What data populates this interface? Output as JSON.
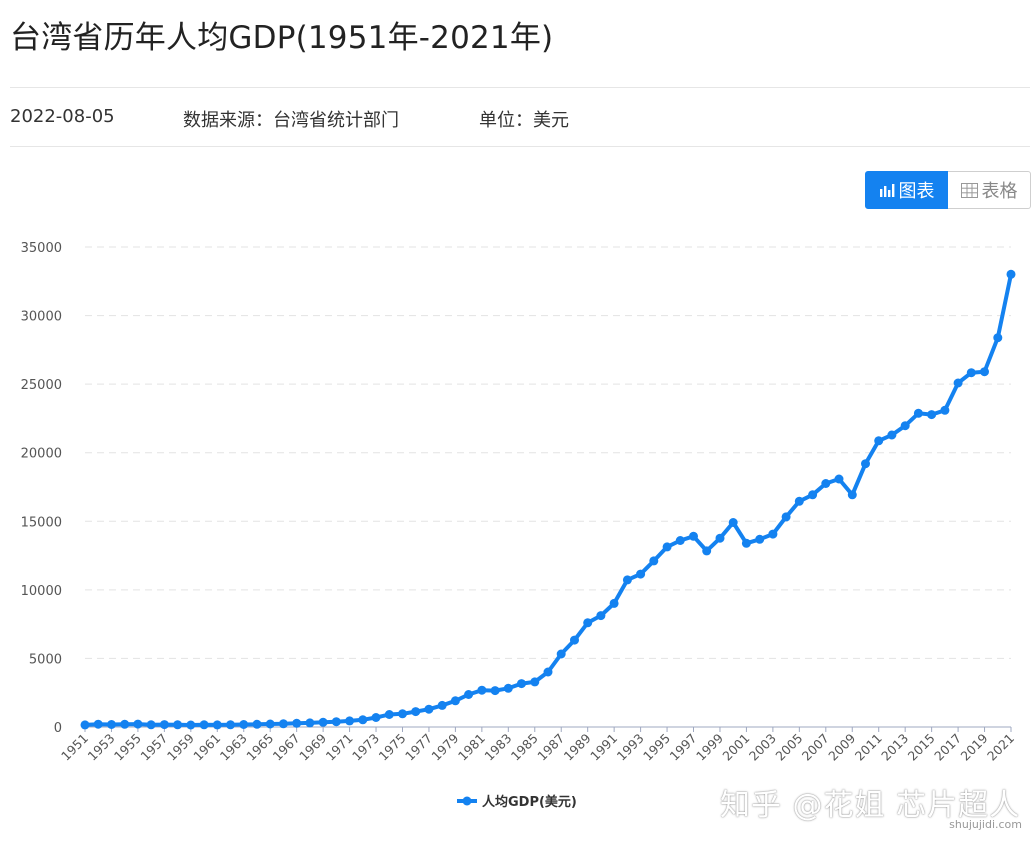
{
  "page": {
    "title": "台湾省历年人均GDP(1951年-2021年)",
    "date": "2022-08-05",
    "source": "数据来源：台湾省统计部门",
    "unit": "单位：美元"
  },
  "view_tabs": {
    "chart": "图表",
    "table": "表格",
    "active": "chart"
  },
  "watermark": {
    "text": "知乎 @花姐 芯片超人",
    "url": "shujujidi.com"
  },
  "colors": {
    "series": "#1482f0",
    "grid": "#e3e3e3",
    "axis": "#9fa8c0",
    "tick_text": "#555555"
  },
  "chart_data": {
    "type": "line",
    "x": [
      1951,
      1952,
      1953,
      1954,
      1955,
      1956,
      1957,
      1958,
      1959,
      1960,
      1961,
      1962,
      1963,
      1964,
      1965,
      1966,
      1967,
      1968,
      1969,
      1970,
      1971,
      1972,
      1973,
      1974,
      1975,
      1976,
      1977,
      1978,
      1979,
      1980,
      1981,
      1982,
      1983,
      1984,
      1985,
      1986,
      1987,
      1988,
      1989,
      1990,
      1991,
      1992,
      1993,
      1994,
      1995,
      1996,
      1997,
      1998,
      1999,
      2000,
      2001,
      2002,
      2003,
      2004,
      2005,
      2006,
      2007,
      2008,
      2009,
      2010,
      2011,
      2012,
      2013,
      2014,
      2015,
      2016,
      2017,
      2018,
      2019,
      2020,
      2021
    ],
    "series": [
      {
        "name": "人均GDP(美元)",
        "values": [
          154,
          205,
          183,
          200,
          210,
          160,
          173,
          164,
          144,
          158,
          151,
          164,
          179,
          195,
          216,
          235,
          267,
          301,
          340,
          389,
          446,
          522,
          690,
          912,
          961,
          1125,
          1300,
          1577,
          1914,
          2367,
          2680,
          2653,
          2823,
          3167,
          3290,
          4008,
          5325,
          6338,
          7597,
          8124,
          9016,
          10726,
          11150,
          12108,
          13129,
          13597,
          13904,
          12840,
          13768,
          14908,
          13397,
          13686,
          14066,
          15317,
          16456,
          16934,
          17757,
          18081,
          16933,
          19197,
          20866,
          21295,
          21973,
          22874,
          22780,
          23091,
          25080,
          25838,
          25908,
          28383,
          33011
        ]
      }
    ],
    "ylim": [
      0,
      35000
    ],
    "yticks": [
      0,
      5000,
      10000,
      15000,
      20000,
      25000,
      30000,
      35000
    ],
    "xtick_labels": [
      "1951",
      "1953",
      "1955",
      "1957",
      "1959",
      "1961",
      "1963",
      "1965",
      "1967",
      "1969",
      "1971",
      "1973",
      "1975",
      "1977",
      "1979",
      "1981",
      "1983",
      "1985",
      "1987",
      "1989",
      "1991",
      "1993",
      "1995",
      "1997",
      "1999",
      "2001",
      "2003",
      "2005",
      "2007",
      "2009",
      "2011",
      "2013",
      "2015",
      "2017",
      "2019",
      "2021"
    ],
    "grid": true,
    "legend_position": "bottom-center"
  }
}
